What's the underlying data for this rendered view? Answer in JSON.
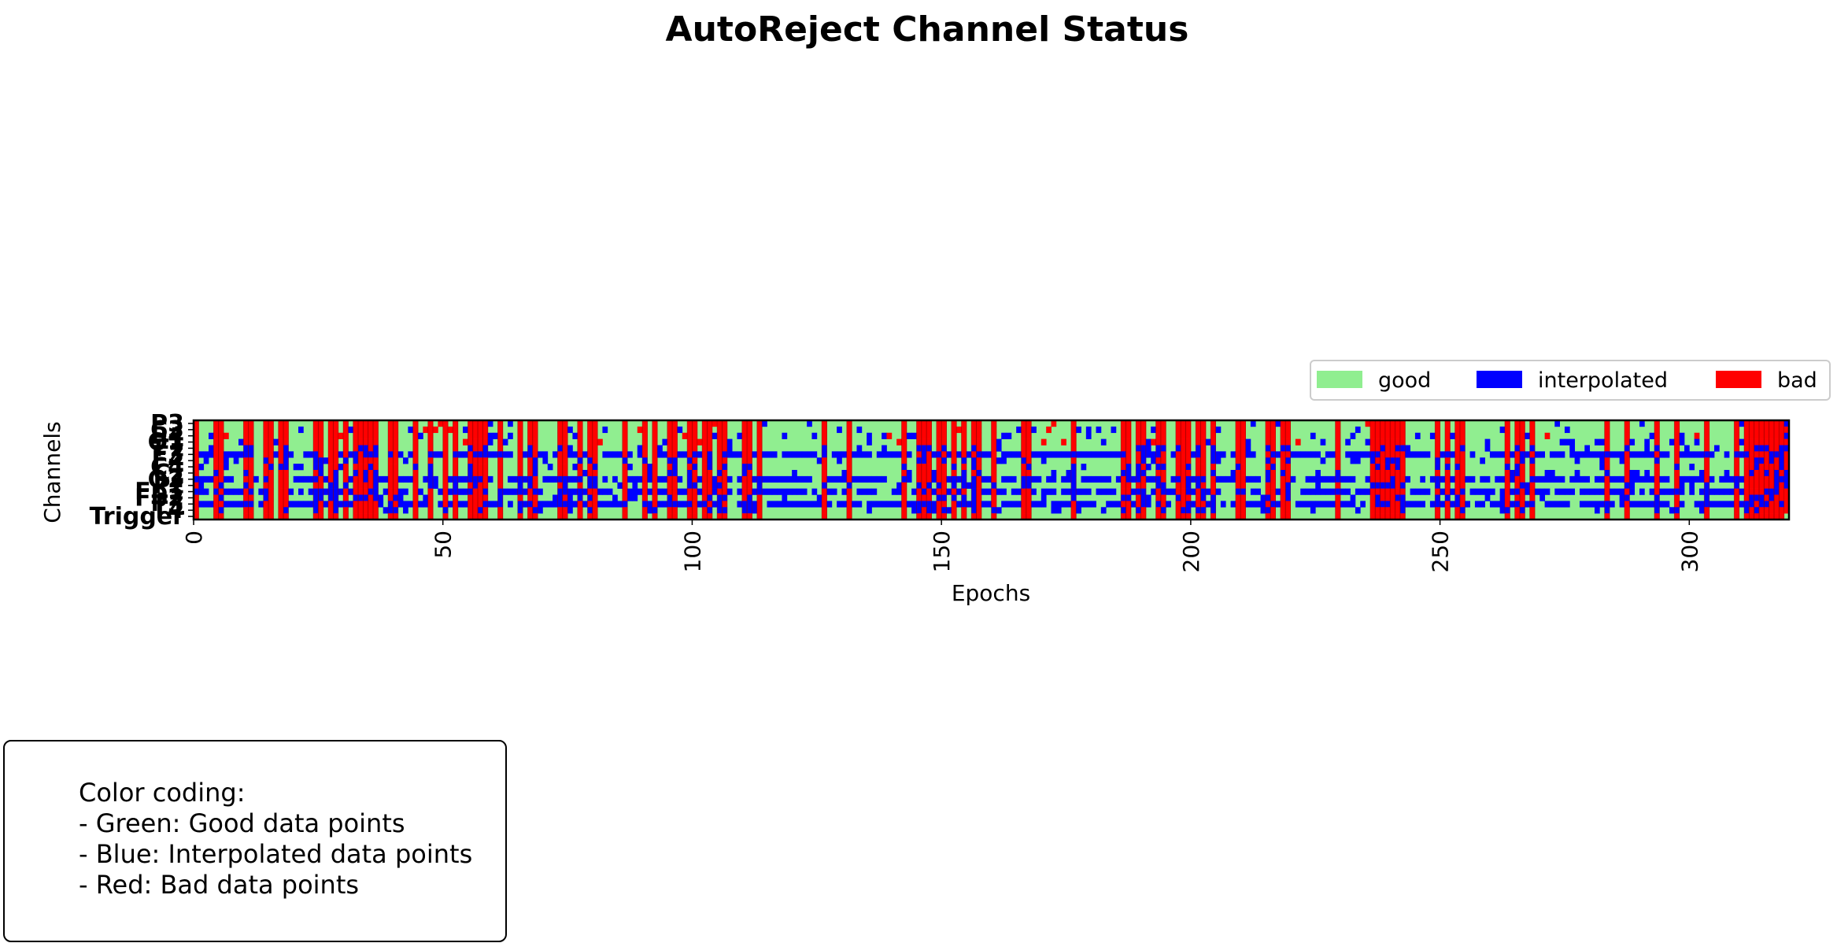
{
  "chart_data": {
    "type": "heatmap",
    "title": "AutoReject Channel Status",
    "xlabel": "Epochs",
    "ylabel": "Channels",
    "xlim": [
      0,
      320
    ],
    "x_ticks": [
      0,
      50,
      100,
      150,
      200,
      250,
      300
    ],
    "y_tick_labels": [
      "P3",
      "C3",
      "P4",
      "O1",
      "Fz",
      "F3",
      "F4",
      "C4",
      "Cz",
      "O2",
      "Pz",
      "Fp1",
      "Fp2",
      "T3",
      "T4",
      "Trigger"
    ],
    "status_categories": [
      "good",
      "interpolated",
      "bad"
    ],
    "colors": {
      "good": "#90ee90",
      "interpolated": "#0000ff",
      "bad": "#ff0000"
    },
    "legend": {
      "placement": "upper-right",
      "entries": [
        "good",
        "interpolated",
        "bad"
      ]
    },
    "grid": false,
    "bad_epochs": [
      0,
      4,
      5,
      10,
      11,
      14,
      15,
      17,
      18,
      24,
      25,
      27,
      28,
      30,
      32,
      33,
      34,
      35,
      36,
      39,
      40,
      44,
      47,
      50,
      52,
      55,
      56,
      57,
      58,
      61,
      65,
      67,
      68,
      73,
      74,
      77,
      79,
      80,
      86,
      90,
      92,
      95,
      96,
      99,
      100,
      102,
      103,
      105,
      106,
      110,
      111,
      113,
      126,
      131,
      142,
      145,
      146,
      147,
      149,
      150,
      152,
      154,
      156,
      157,
      160,
      166,
      167,
      176,
      186,
      187,
      189,
      190,
      193,
      194,
      197,
      198,
      199,
      201,
      202,
      204,
      209,
      210,
      215,
      216,
      218,
      219,
      229,
      236,
      237,
      238,
      239,
      240,
      241,
      242,
      249,
      251,
      253,
      254,
      263,
      265,
      266,
      268,
      283,
      287,
      293,
      297,
      303,
      309,
      311,
      312,
      313,
      314,
      315,
      316,
      317,
      318
    ],
    "interpolated_channel_rows": [
      "F3",
      "O2",
      "Fp1",
      "T3"
    ]
  },
  "note": {
    "lines": [
      "Color coding:",
      "- Green: Good data points",
      "- Blue: Interpolated data points",
      "- Red: Bad data points"
    ]
  }
}
